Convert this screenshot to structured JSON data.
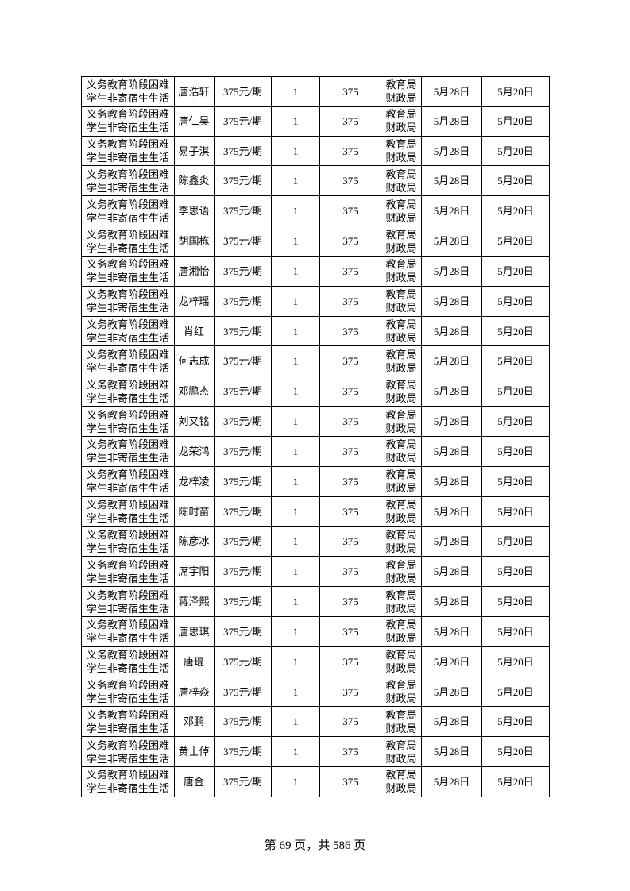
{
  "table": {
    "rows": [
      {
        "program": [
          "义务教育阶段困难",
          "学生非寄宿生生活"
        ],
        "name": "唐浩轩",
        "standard": "375元/期",
        "count": 1,
        "amount": 375,
        "dept": [
          "教育局",
          "财政局"
        ],
        "date1": "5月28日",
        "date2": "5月20日"
      },
      {
        "program": [
          "义务教育阶段困难",
          "学生非寄宿生生活"
        ],
        "name": "唐仁昊",
        "standard": "375元/期",
        "count": 1,
        "amount": 375,
        "dept": [
          "教育局",
          "财政局"
        ],
        "date1": "5月28日",
        "date2": "5月20日"
      },
      {
        "program": [
          "义务教育阶段困难",
          "学生非寄宿生生活"
        ],
        "name": "易子淇",
        "standard": "375元/期",
        "count": 1,
        "amount": 375,
        "dept": [
          "教育局",
          "财政局"
        ],
        "date1": "5月28日",
        "date2": "5月20日"
      },
      {
        "program": [
          "义务教育阶段困难",
          "学生非寄宿生生活"
        ],
        "name": "陈鑫炎",
        "standard": "375元/期",
        "count": 1,
        "amount": 375,
        "dept": [
          "教育局",
          "财政局"
        ],
        "date1": "5月28日",
        "date2": "5月20日"
      },
      {
        "program": [
          "义务教育阶段困难",
          "学生非寄宿生生活"
        ],
        "name": "李思语",
        "standard": "375元/期",
        "count": 1,
        "amount": 375,
        "dept": [
          "教育局",
          "财政局"
        ],
        "date1": "5月28日",
        "date2": "5月20日"
      },
      {
        "program": [
          "义务教育阶段困难",
          "学生非寄宿生生活"
        ],
        "name": "胡国栋",
        "standard": "375元/期",
        "count": 1,
        "amount": 375,
        "dept": [
          "教育局",
          "财政局"
        ],
        "date1": "5月28日",
        "date2": "5月20日"
      },
      {
        "program": [
          "义务教育阶段困难",
          "学生非寄宿生生活"
        ],
        "name": "唐湘怡",
        "standard": "375元/期",
        "count": 1,
        "amount": 375,
        "dept": [
          "教育局",
          "财政局"
        ],
        "date1": "5月28日",
        "date2": "5月20日"
      },
      {
        "program": [
          "义务教育阶段困难",
          "学生非寄宿生生活"
        ],
        "name": "龙梓瑶",
        "standard": "375元/期",
        "count": 1,
        "amount": 375,
        "dept": [
          "教育局",
          "财政局"
        ],
        "date1": "5月28日",
        "date2": "5月20日"
      },
      {
        "program": [
          "义务教育阶段困难",
          "学生非寄宿生生活"
        ],
        "name": "肖红",
        "standard": "375元/期",
        "count": 1,
        "amount": 375,
        "dept": [
          "教育局",
          "财政局"
        ],
        "date1": "5月28日",
        "date2": "5月20日"
      },
      {
        "program": [
          "义务教育阶段困难",
          "学生非寄宿生生活"
        ],
        "name": "何志成",
        "standard": "375元/期",
        "count": 1,
        "amount": 375,
        "dept": [
          "教育局",
          "财政局"
        ],
        "date1": "5月28日",
        "date2": "5月20日"
      },
      {
        "program": [
          "义务教育阶段困难",
          "学生非寄宿生生活"
        ],
        "name": "邓鹏杰",
        "standard": "375元/期",
        "count": 1,
        "amount": 375,
        "dept": [
          "教育局",
          "财政局"
        ],
        "date1": "5月28日",
        "date2": "5月20日"
      },
      {
        "program": [
          "义务教育阶段困难",
          "学生非寄宿生生活"
        ],
        "name": "刘又铭",
        "standard": "375元/期",
        "count": 1,
        "amount": 375,
        "dept": [
          "教育局",
          "财政局"
        ],
        "date1": "5月28日",
        "date2": "5月20日"
      },
      {
        "program": [
          "义务教育阶段困难",
          "学生非寄宿生生活"
        ],
        "name": "龙荣鸿",
        "standard": "375元/期",
        "count": 1,
        "amount": 375,
        "dept": [
          "教育局",
          "财政局"
        ],
        "date1": "5月28日",
        "date2": "5月20日"
      },
      {
        "program": [
          "义务教育阶段困难",
          "学生非寄宿生生活"
        ],
        "name": "龙梓凌",
        "standard": "375元/期",
        "count": 1,
        "amount": 375,
        "dept": [
          "教育局",
          "财政局"
        ],
        "date1": "5月28日",
        "date2": "5月20日"
      },
      {
        "program": [
          "义务教育阶段困难",
          "学生非寄宿生生活"
        ],
        "name": "陈时苗",
        "standard": "375元/期",
        "count": 1,
        "amount": 375,
        "dept": [
          "教育局",
          "财政局"
        ],
        "date1": "5月28日",
        "date2": "5月20日"
      },
      {
        "program": [
          "义务教育阶段困难",
          "学生非寄宿生生活"
        ],
        "name": "陈彦冰",
        "standard": "375元/期",
        "count": 1,
        "amount": 375,
        "dept": [
          "教育局",
          "财政局"
        ],
        "date1": "5月28日",
        "date2": "5月20日"
      },
      {
        "program": [
          "义务教育阶段困难",
          "学生非寄宿生生活"
        ],
        "name": "席宇阳",
        "standard": "375元/期",
        "count": 1,
        "amount": 375,
        "dept": [
          "教育局",
          "财政局"
        ],
        "date1": "5月28日",
        "date2": "5月20日"
      },
      {
        "program": [
          "义务教育阶段困难",
          "学生非寄宿生生活"
        ],
        "name": "蒋泽熙",
        "standard": "375元/期",
        "count": 1,
        "amount": 375,
        "dept": [
          "教育局",
          "财政局"
        ],
        "date1": "5月28日",
        "date2": "5月20日"
      },
      {
        "program": [
          "义务教育阶段困难",
          "学生非寄宿生生活"
        ],
        "name": "唐思琪",
        "standard": "375元/期",
        "count": 1,
        "amount": 375,
        "dept": [
          "教育局",
          "财政局"
        ],
        "date1": "5月28日",
        "date2": "5月20日"
      },
      {
        "program": [
          "义务教育阶段困难",
          "学生非寄宿生生活"
        ],
        "name": "唐琨",
        "standard": "375元/期",
        "count": 1,
        "amount": 375,
        "dept": [
          "教育局",
          "财政局"
        ],
        "date1": "5月28日",
        "date2": "5月20日"
      },
      {
        "program": [
          "义务教育阶段困难",
          "学生非寄宿生生活"
        ],
        "name": "唐梓焱",
        "standard": "375元/期",
        "count": 1,
        "amount": 375,
        "dept": [
          "教育局",
          "财政局"
        ],
        "date1": "5月28日",
        "date2": "5月20日"
      },
      {
        "program": [
          "义务教育阶段困难",
          "学生非寄宿生生活"
        ],
        "name": "邓鹏",
        "standard": "375元/期",
        "count": 1,
        "amount": 375,
        "dept": [
          "教育局",
          "财政局"
        ],
        "date1": "5月28日",
        "date2": "5月20日"
      },
      {
        "program": [
          "义务教育阶段困难",
          "学生非寄宿生生活"
        ],
        "name": "黄士倬",
        "standard": "375元/期",
        "count": 1,
        "amount": 375,
        "dept": [
          "教育局",
          "财政局"
        ],
        "date1": "5月28日",
        "date2": "5月20日"
      },
      {
        "program": [
          "义务教育阶段困难",
          "学生非寄宿生生活"
        ],
        "name": "唐金",
        "standard": "375元/期",
        "count": 1,
        "amount": 375,
        "dept": [
          "教育局",
          "财政局"
        ],
        "date1": "5月28日",
        "date2": "5月20日"
      }
    ]
  },
  "footer": "第 69 页，共 586 页"
}
